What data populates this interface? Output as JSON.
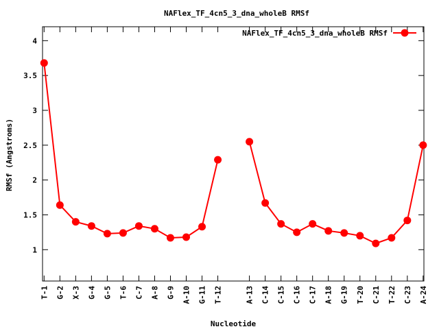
{
  "chart_data": {
    "type": "line",
    "title": "NAFlex_TF_4cn5_3_dna_wholeB RMSf",
    "xlabel": "Nucleotide",
    "ylabel": "RMSf (Angstroms)",
    "ylim": [
      0.55,
      4.2
    ],
    "y_ticks": [
      "1",
      "1.5",
      "2",
      "2.5",
      "3",
      "3.5",
      "4"
    ],
    "grid": false,
    "legend_position": "top-right",
    "x_positions": [
      1,
      2,
      3,
      4,
      5,
      6,
      7,
      8,
      9,
      10,
      11,
      12,
      14,
      15,
      16,
      17,
      18,
      19,
      20,
      21,
      22,
      23,
      24,
      25
    ],
    "categories": [
      "T-1",
      "G-2",
      "X-3",
      "G-4",
      "G-5",
      "T-6",
      "C-7",
      "A-8",
      "G-9",
      "A-10",
      "G-11",
      "T-12",
      "A-13",
      "C-14",
      "C-15",
      "C-16",
      "C-17",
      "A-18",
      "G-19",
      "T-20",
      "C-21",
      "T-22",
      "C-23",
      "A-24"
    ],
    "series": [
      {
        "name": "NAFlex_TF_4cn5_3_dna_wholeB RMSf",
        "color": "#ff0000",
        "values": [
          3.68,
          1.64,
          1.4,
          1.34,
          1.23,
          1.24,
          1.34,
          1.3,
          1.17,
          1.18,
          1.33,
          2.29,
          2.55,
          1.67,
          1.37,
          1.25,
          1.37,
          1.27,
          1.24,
          1.2,
          1.09,
          1.17,
          1.42,
          2.5
        ],
        "segments": [
          [
            0,
            11
          ],
          [
            12,
            23
          ]
        ]
      }
    ]
  }
}
